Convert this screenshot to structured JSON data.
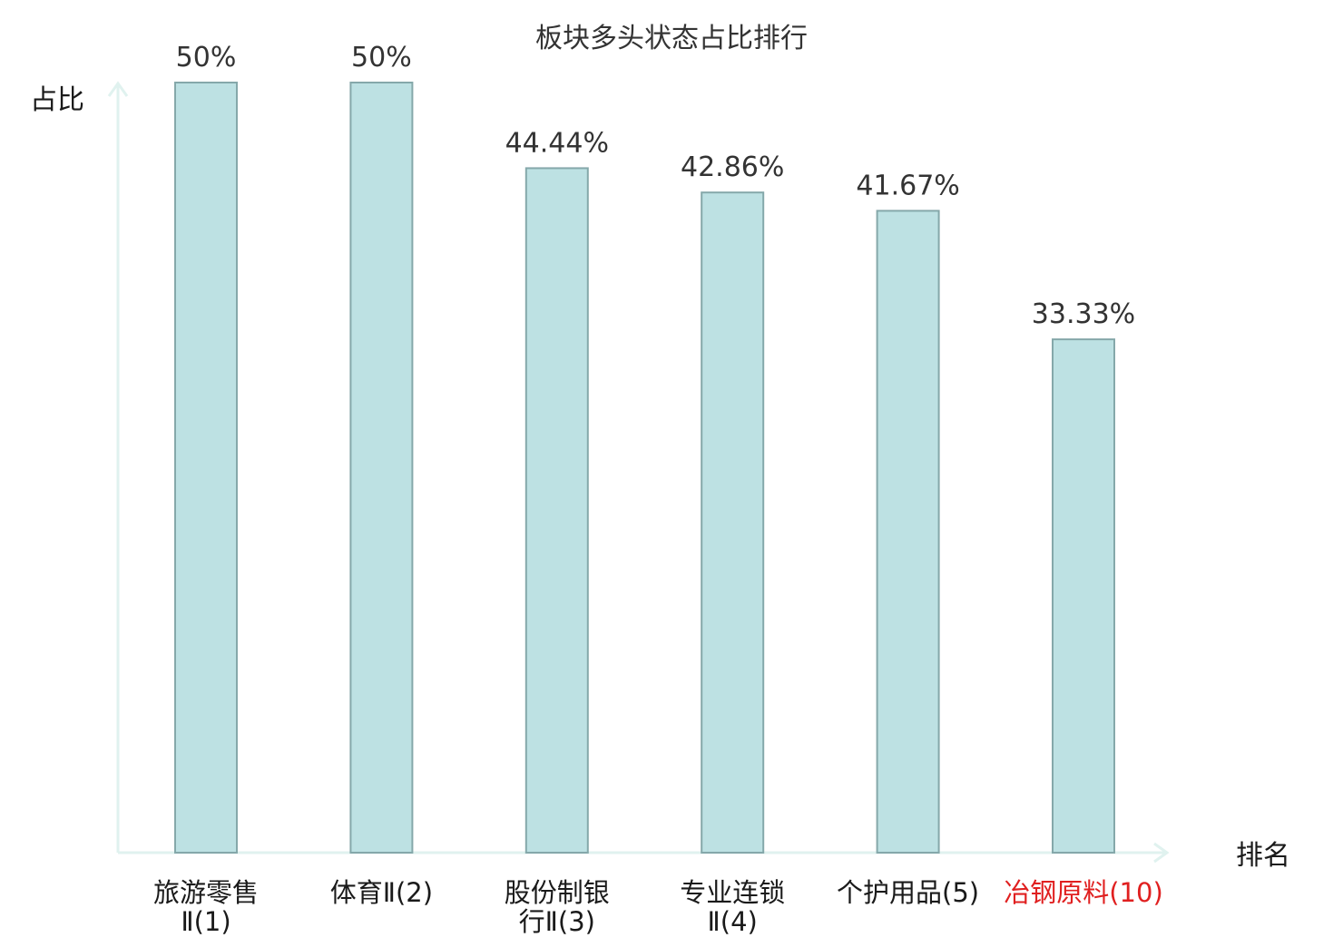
{
  "chart_data": {
    "type": "bar",
    "title": "板块多头状态占比排行",
    "ylabel": "占比",
    "xlabel": "排名",
    "ylim": [
      0,
      50
    ],
    "grid": false,
    "legend": "none",
    "categories": [
      [
        "旅游零售",
        "Ⅱ(1)"
      ],
      [
        "体育Ⅱ(2)"
      ],
      [
        "股份制银",
        "行Ⅱ(3)"
      ],
      [
        "专业连锁",
        "Ⅱ(4)"
      ],
      [
        "个护用品(5)"
      ],
      [
        "冶钢原料(10)"
      ]
    ],
    "values": [
      50,
      50,
      44.44,
      42.86,
      41.67,
      33.33
    ],
    "value_labels": [
      "50%",
      "50%",
      "44.44%",
      "42.86%",
      "41.67%",
      "33.33%"
    ],
    "highlighted_category_index": 5
  },
  "colors": {
    "bar_fill": "#bde1e3",
    "bar_stroke": "#85a8aa",
    "axis": "#e0f2ef",
    "text": "#333333",
    "category_text": "#1a1a1a",
    "highlight_text": "#e02020"
  }
}
